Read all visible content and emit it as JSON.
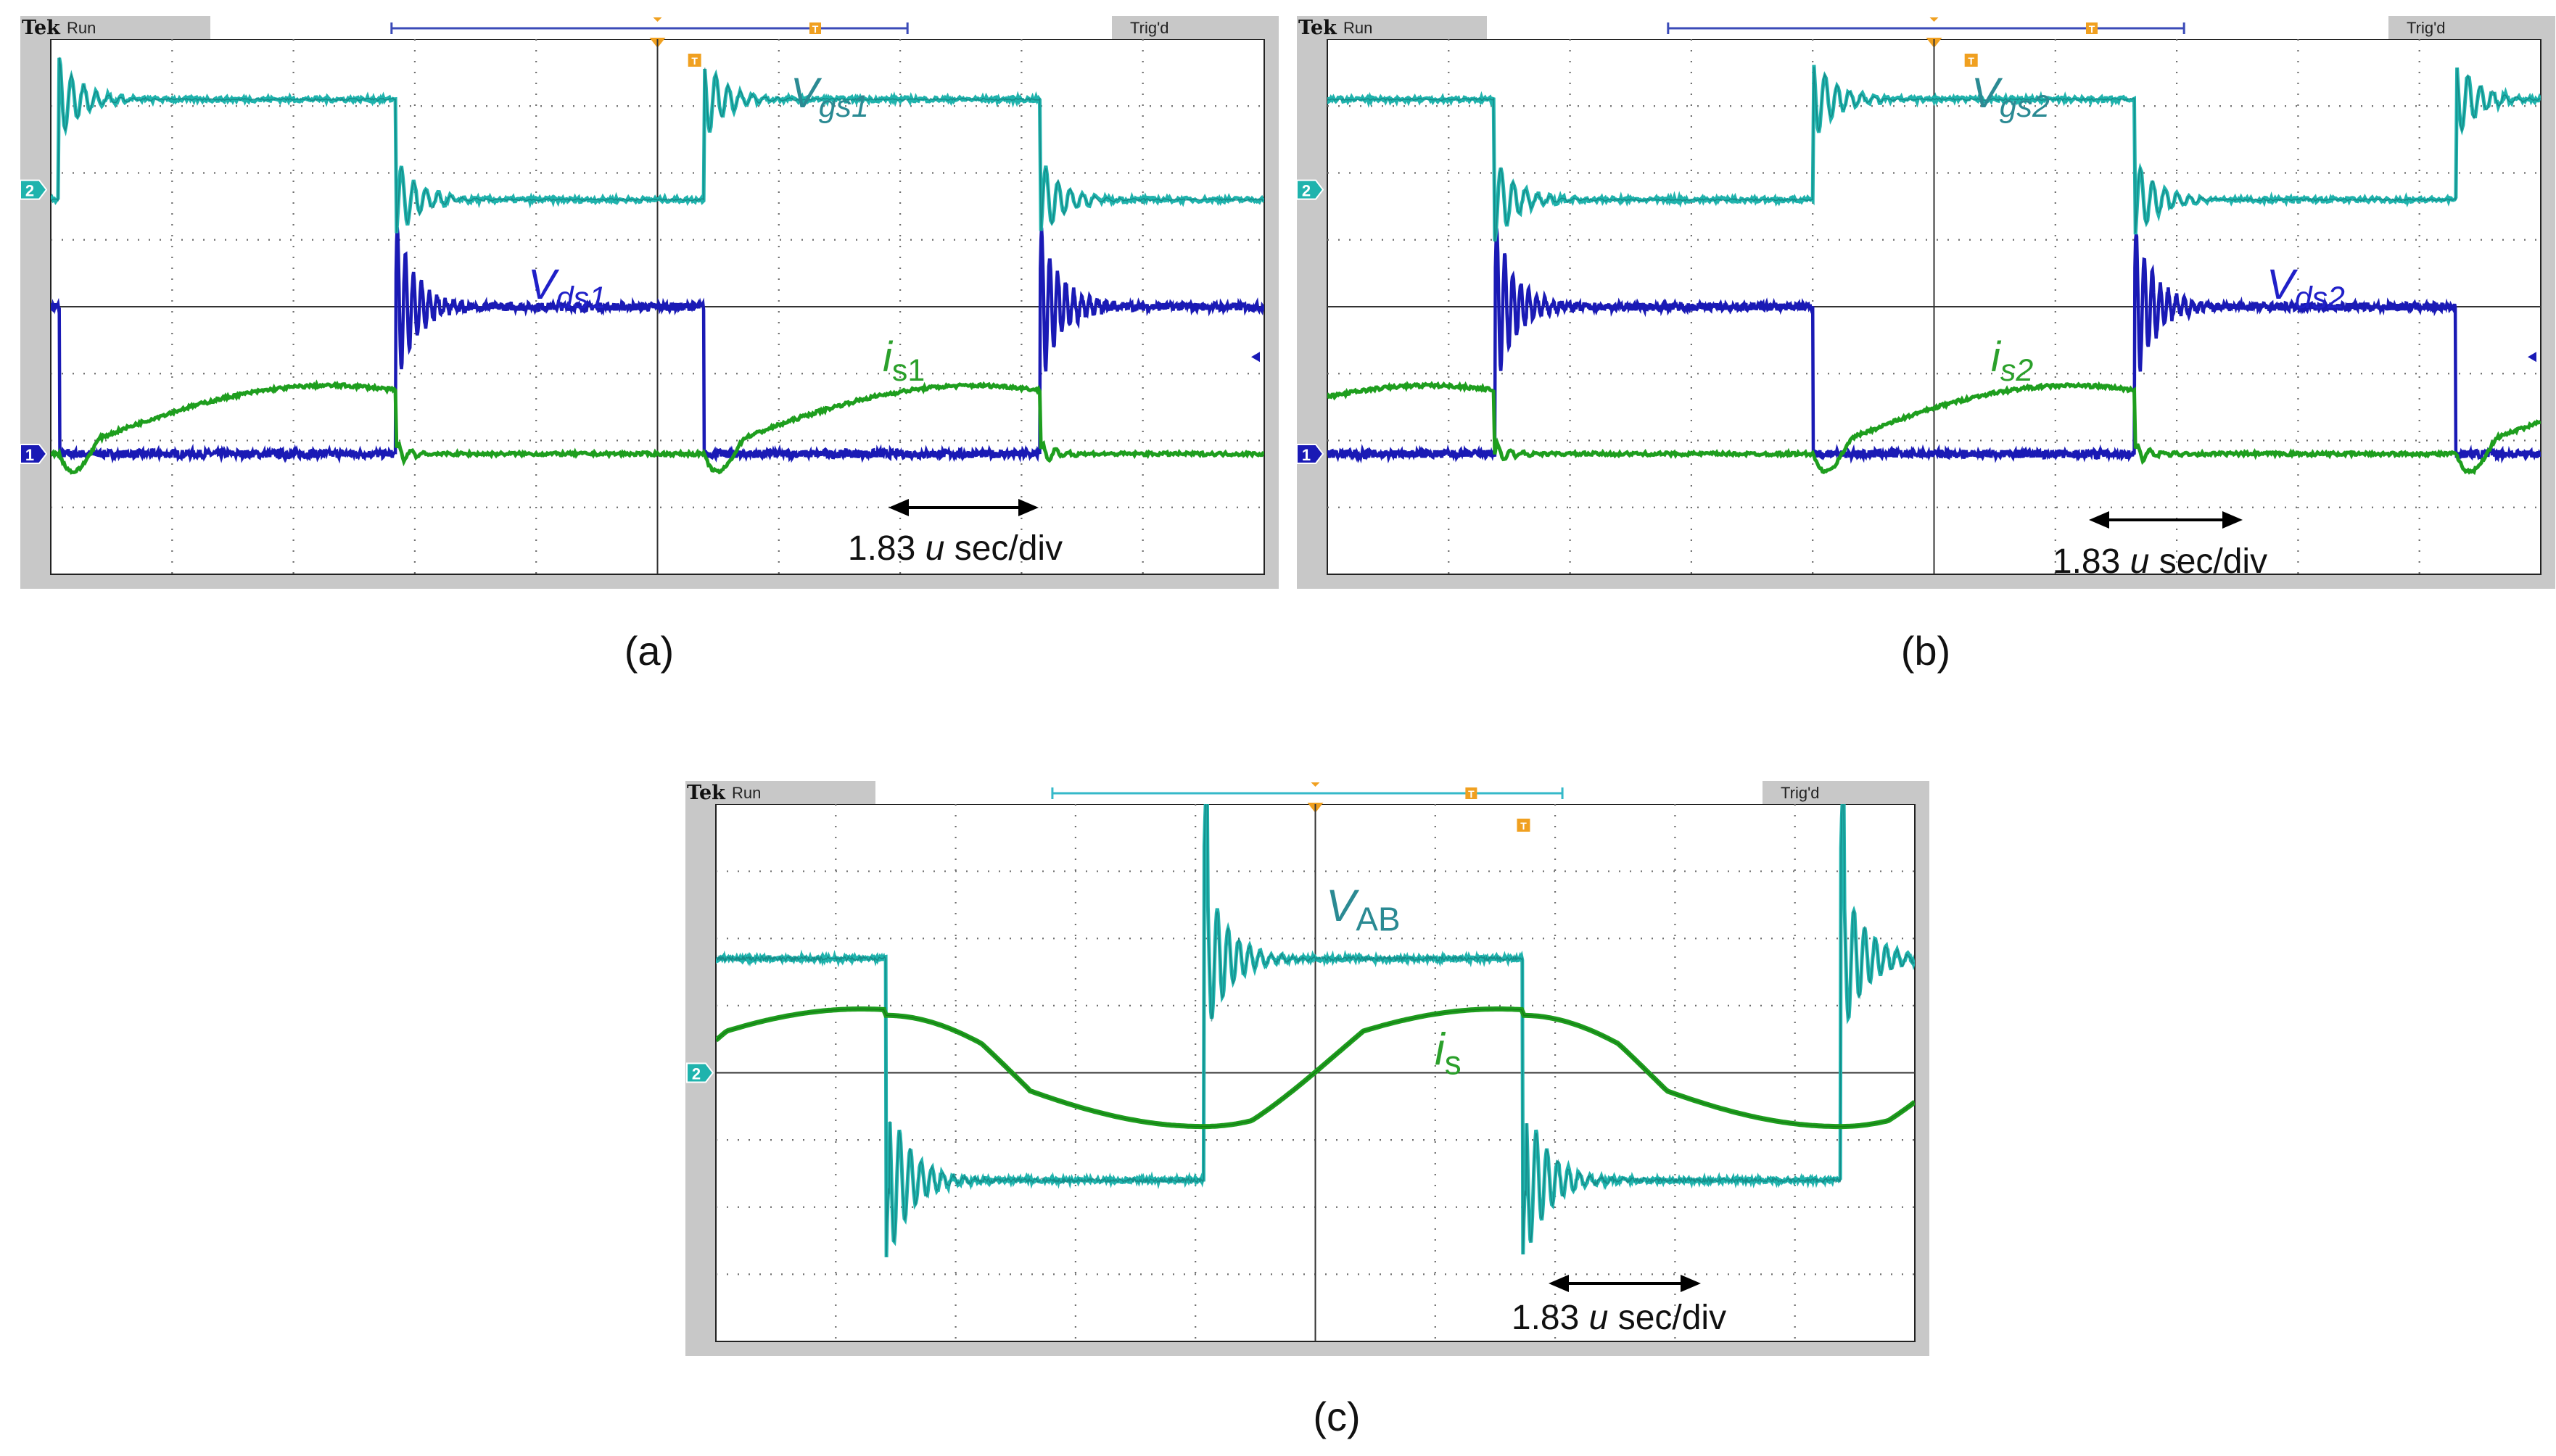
{
  "colors": {
    "vgs": "#1fb3ad",
    "vgs_label": "#2b8a93",
    "vds": "#1a1ab5",
    "vds_label": "#2020c8",
    "is": "#1e9e1e",
    "is_label": "#2ba02b",
    "grid": "#6e6e6e",
    "frame": "#c8c8c8",
    "marker_orange": "#f0a020",
    "trigger_bar": "#3b4bb8",
    "trigger_bar_c": "#35b9c9"
  },
  "scope_header": {
    "brand": "Tek",
    "mode": "Run",
    "status": "Trig'd",
    "trigger_marker": "T"
  },
  "channel_markers": {
    "ch1": "1",
    "ch2": "2"
  },
  "scales": {
    "time_per_div_us": 1.83
  },
  "chart_data": [
    {
      "id": "a",
      "type": "line",
      "panel_label": "(a)",
      "x_divisions": 10,
      "y_divisions": 8,
      "time_scale": {
        "value": "1.83",
        "unit_italic": "u",
        "suffix": " sec/div"
      },
      "labels": {
        "vgs": {
          "main": "V",
          "sub": "gs1"
        },
        "vds": {
          "main": "V",
          "sub": "ds1"
        },
        "is": {
          "main": "i",
          "sub": "s1"
        }
      },
      "series": [
        {
          "name": "Vgs1",
          "waveform": "gate-drive",
          "low_div": 1.6,
          "high_div": 3.1,
          "rise_div": [
            0.07,
            5.38
          ],
          "fall_div": [
            2.84,
            8.15
          ]
        },
        {
          "name": "Vds1",
          "waveform": "drain-source",
          "low_div": -2.2,
          "high_div": 0.0,
          "rise_div": [
            2.84,
            8.15
          ],
          "fall_div": [
            0.07,
            5.38
          ]
        },
        {
          "name": "is1",
          "waveform": "resonant-current",
          "baseline_div": -2.2,
          "peak_div": -1.25,
          "pulse_start_div": [
            0.07,
            5.38
          ],
          "pulse_end_div": [
            2.84,
            8.15
          ]
        }
      ]
    },
    {
      "id": "b",
      "type": "line",
      "panel_label": "(b)",
      "x_divisions": 10,
      "y_divisions": 8,
      "time_scale": {
        "value": "1.83",
        "unit_italic": "u",
        "suffix": " sec/div"
      },
      "labels": {
        "vgs": {
          "main": "V",
          "sub": "gs2"
        },
        "vds": {
          "main": "V",
          "sub": "ds2"
        },
        "is": {
          "main": "i",
          "sub": "s2"
        }
      },
      "series": [
        {
          "name": "Vgs2",
          "waveform": "gate-drive",
          "low_div": 1.6,
          "high_div": 3.1,
          "rise_div": [
            4.0,
            9.3
          ],
          "fall_div": [
            1.38,
            6.65
          ]
        },
        {
          "name": "Vds2",
          "waveform": "drain-source",
          "low_div": -2.2,
          "high_div": 0.0,
          "rise_div": [
            1.38,
            6.65
          ],
          "fall_div": [
            4.0,
            9.3
          ]
        },
        {
          "name": "is2",
          "waveform": "resonant-current",
          "baseline_div": -2.2,
          "peak_div": -1.25,
          "pulse_start_div": [
            4.0,
            9.3
          ],
          "pulse_end_div": [
            1.38,
            6.65
          ]
        }
      ]
    },
    {
      "id": "c",
      "type": "line",
      "panel_label": "(c)",
      "x_divisions": 10,
      "y_divisions": 8,
      "time_scale": {
        "value": "1.83",
        "unit_italic": "u",
        "suffix": " sec/div"
      },
      "labels": {
        "vab": {
          "main": "V",
          "sub": "AB"
        },
        "is": {
          "main": "i",
          "sub": "s"
        }
      },
      "series": [
        {
          "name": "VAB",
          "waveform": "square-bipolar",
          "high_div": 1.7,
          "low_div": -1.6,
          "fall_div": [
            1.42,
            6.73
          ],
          "rise_div": [
            4.07,
            9.38
          ]
        },
        {
          "name": "is",
          "waveform": "resonant-current-bipolar",
          "peak_div": 0.95,
          "trough_div": -0.8,
          "start_div": 0.0
        }
      ]
    }
  ]
}
